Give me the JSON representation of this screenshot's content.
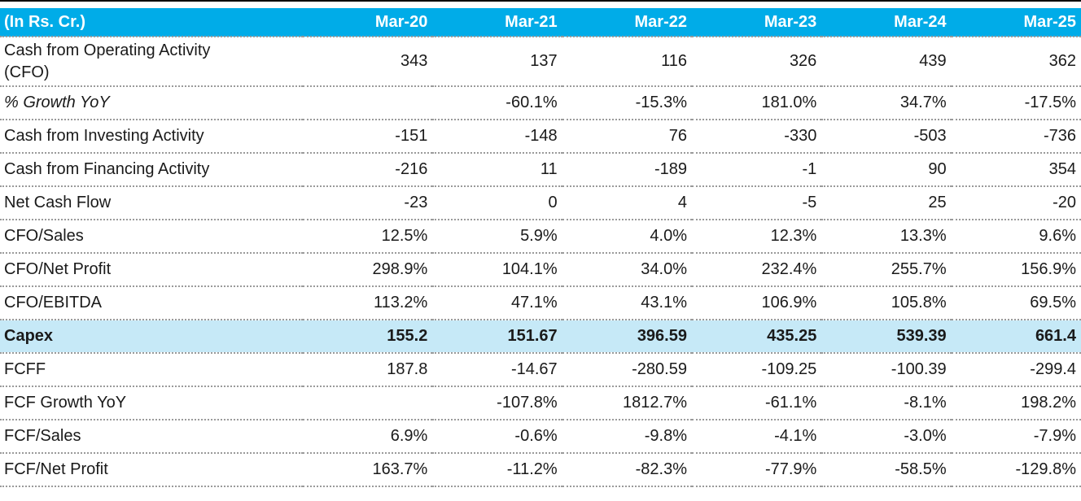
{
  "chart_data": {
    "type": "table",
    "corner_label": "(In Rs. Cr.)",
    "columns": [
      "Mar-20",
      "Mar-21",
      "Mar-22",
      "Mar-23",
      "Mar-24",
      "Mar-25"
    ],
    "rows": [
      {
        "label": "Cash from Operating Activity (CFO)",
        "tall": true,
        "values": [
          "343",
          "137",
          "116",
          "326",
          "439",
          "362"
        ]
      },
      {
        "label": "% Growth YoY",
        "italic": true,
        "values": [
          "",
          "-60.1%",
          "-15.3%",
          "181.0%",
          "34.7%",
          "-17.5%"
        ]
      },
      {
        "label": "Cash from Investing Activity",
        "values": [
          "-151",
          "-148",
          "76",
          "-330",
          "-503",
          "-736"
        ]
      },
      {
        "label": "Cash from Financing Activity",
        "values": [
          "-216",
          "11",
          "-189",
          "-1",
          "90",
          "354"
        ]
      },
      {
        "label": "Net Cash Flow",
        "values": [
          "-23",
          "0",
          "4",
          "-5",
          "25",
          "-20"
        ]
      },
      {
        "label": "CFO/Sales",
        "values": [
          "12.5%",
          "5.9%",
          "4.0%",
          "12.3%",
          "13.3%",
          "9.6%"
        ]
      },
      {
        "label": "CFO/Net Profit",
        "values": [
          "298.9%",
          "104.1%",
          "34.0%",
          "232.4%",
          "255.7%",
          "156.9%"
        ]
      },
      {
        "label": "CFO/EBITDA",
        "values": [
          "113.2%",
          "47.1%",
          "43.1%",
          "106.9%",
          "105.8%",
          "69.5%"
        ]
      },
      {
        "label": "Capex",
        "bold": true,
        "highlight": true,
        "values": [
          "155.2",
          "151.67",
          "396.59",
          "435.25",
          "539.39",
          "661.4"
        ]
      },
      {
        "label": "FCFF",
        "values": [
          "187.8",
          "-14.67",
          "-280.59",
          "-109.25",
          "-100.39",
          "-299.4"
        ]
      },
      {
        "label": "FCF Growth YoY",
        "values": [
          "",
          "-107.8%",
          "1812.7%",
          "-61.1%",
          "-8.1%",
          "198.2%"
        ]
      },
      {
        "label": "FCF/Sales",
        "values": [
          "6.9%",
          "-0.6%",
          "-9.8%",
          "-4.1%",
          "-3.0%",
          "-7.9%"
        ]
      },
      {
        "label": "FCF/Net Profit",
        "values": [
          "163.7%",
          "-11.2%",
          "-82.3%",
          "-77.9%",
          "-58.5%",
          "-129.8%"
        ]
      }
    ]
  },
  "colors": {
    "header_bg": "#00ACE8",
    "header_text": "#FFFFFF",
    "highlight_bg": "#C6E9F7",
    "divider": "#9A9A9A",
    "text": "#1A1A1A"
  }
}
